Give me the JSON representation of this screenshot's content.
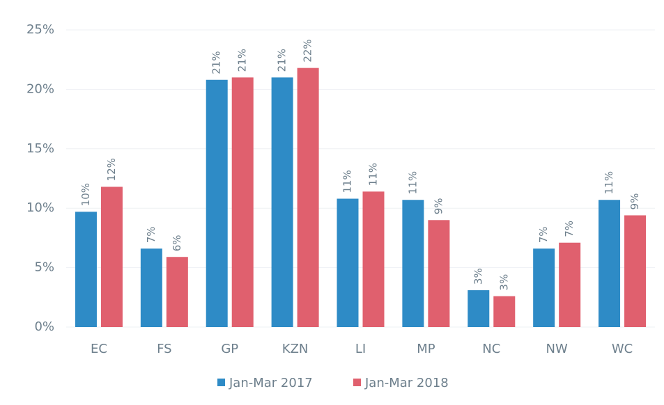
{
  "chart_data": {
    "type": "bar",
    "categories": [
      "EC",
      "FS",
      "GP",
      "KZN",
      "LI",
      "MP",
      "NC",
      "NW",
      "WC"
    ],
    "series": [
      {
        "name": "Jan-Mar 2017",
        "color": "#2e8bc6",
        "values": [
          9.7,
          6.6,
          20.8,
          21.0,
          10.8,
          10.7,
          3.1,
          6.6,
          10.7
        ],
        "value_labels": [
          "10%",
          "7%",
          "21%",
          "21%",
          "11%",
          "11%",
          "3%",
          "7%",
          "11%"
        ]
      },
      {
        "name": "Jan-Mar 2018",
        "color": "#e0606e",
        "values": [
          11.8,
          5.9,
          21.0,
          21.8,
          11.4,
          9.0,
          2.6,
          7.1,
          9.4
        ],
        "value_labels": [
          "12%",
          "6%",
          "21%",
          "22%",
          "11%",
          "9%",
          "3%",
          "7%",
          "9%"
        ]
      }
    ],
    "ylim": [
      0,
      25
    ],
    "yticks": [
      {
        "value": 0,
        "label": "0%"
      },
      {
        "value": 5,
        "label": "5%"
      },
      {
        "value": 10,
        "label": "10%"
      },
      {
        "value": 15,
        "label": "15%"
      },
      {
        "value": 20,
        "label": "20%"
      },
      {
        "value": 25,
        "label": "25%"
      }
    ],
    "grid": true,
    "legend": "bottom"
  }
}
